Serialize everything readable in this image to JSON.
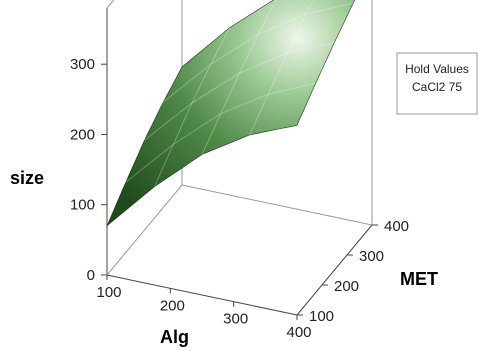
{
  "chart_data": {
    "type": "surface",
    "title": "",
    "zlabel": "size",
    "xlabel": "Alg",
    "ylabel": "MET",
    "x_ticks": [
      100,
      200,
      300,
      400
    ],
    "y_ticks": [
      100,
      200,
      300,
      400
    ],
    "z_ticks": [
      0,
      100,
      200,
      300
    ],
    "xlim": [
      100,
      400
    ],
    "ylim": [
      100,
      400
    ],
    "zlim": [
      0,
      380
    ],
    "hold_values": {
      "title": "Hold Values",
      "entry": "CaCl2 75"
    },
    "surface_grid": {
      "x": [
        100,
        175,
        250,
        325,
        400
      ],
      "y": [
        100,
        175,
        250,
        325,
        400
      ],
      "z": [
        [
          70,
          100,
          128,
          150,
          168
        ],
        [
          140,
          168,
          195,
          218,
          238
        ],
        [
          200,
          226,
          252,
          275,
          295
        ],
        [
          242,
          268,
          294,
          318,
          338
        ],
        [
          270,
          298,
          324,
          348,
          370
        ]
      ]
    },
    "surface_color": "#3f7a3a",
    "grid": false,
    "legend_position": "top-right"
  }
}
